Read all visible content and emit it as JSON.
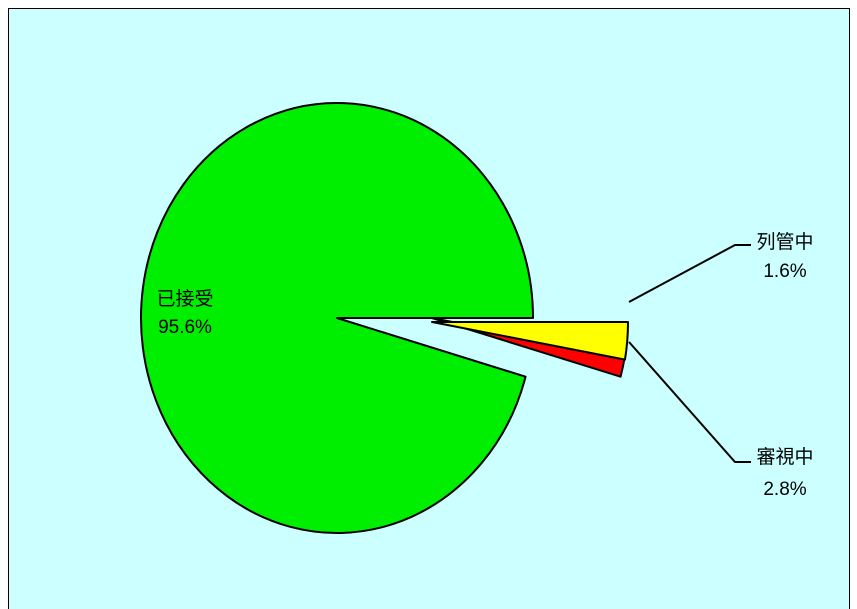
{
  "chart_data": {
    "type": "pie",
    "categories": [
      "已接受",
      "列管中",
      "審視中"
    ],
    "values": [
      95.6,
      1.6,
      2.8
    ],
    "value_labels": [
      "95.6%",
      "1.6%",
      "2.8%"
    ],
    "colors": [
      "#00ee00",
      "#ff0000",
      "#ffff00"
    ]
  }
}
